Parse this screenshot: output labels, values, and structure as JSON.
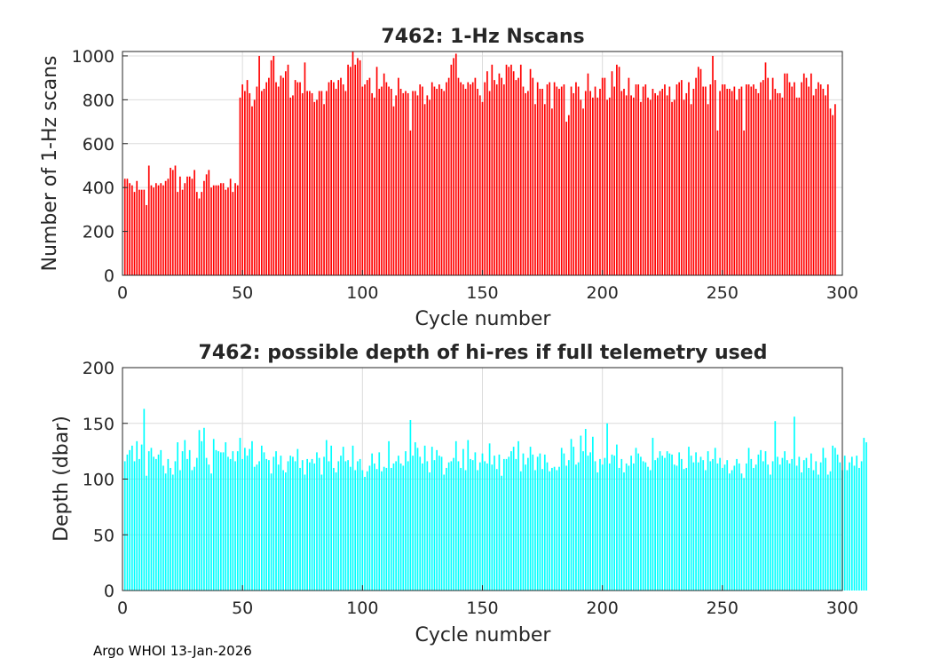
{
  "footer": "Argo WHOI 13-Jan-2026",
  "chart_data": [
    {
      "type": "bar",
      "title": "7462: 1-Hz Nscans",
      "xlabel": "Cycle number",
      "ylabel": "Number of 1-Hz scans",
      "xlim": [
        0,
        300
      ],
      "ylim": [
        0,
        1020
      ],
      "xticks": [
        0,
        50,
        100,
        150,
        200,
        250,
        300
      ],
      "yticks": [
        0,
        200,
        400,
        600,
        800,
        1000
      ],
      "grid": true,
      "color": "#ff0000",
      "x_start": 1,
      "values": [
        440,
        440,
        420,
        410,
        380,
        430,
        390,
        390,
        390,
        320,
        500,
        410,
        400,
        420,
        410,
        420,
        410,
        430,
        440,
        490,
        480,
        500,
        380,
        450,
        390,
        420,
        450,
        450,
        440,
        480,
        380,
        350,
        380,
        430,
        460,
        480,
        400,
        410,
        410,
        410,
        420,
        420,
        390,
        400,
        440,
        380,
        420,
        410,
        810,
        870,
        840,
        890,
        830,
        770,
        800,
        860,
        1000,
        840,
        850,
        880,
        900,
        980,
        1000,
        880,
        860,
        910,
        900,
        930,
        960,
        810,
        820,
        890,
        880,
        880,
        830,
        970,
        840,
        840,
        830,
        790,
        800,
        840,
        840,
        780,
        840,
        880,
        890,
        880,
        850,
        890,
        900,
        870,
        840,
        960,
        950,
        1020,
        960,
        990,
        980,
        860,
        870,
        890,
        900,
        830,
        810,
        950,
        850,
        860,
        920,
        880,
        860,
        850,
        770,
        820,
        900,
        850,
        830,
        840,
        830,
        660,
        840,
        840,
        820,
        870,
        860,
        780,
        820,
        800,
        880,
        860,
        850,
        870,
        850,
        840,
        880,
        900,
        960,
        990,
        1010,
        900,
        880,
        870,
        850,
        880,
        870,
        880,
        900,
        850,
        820,
        790,
        880,
        930,
        840,
        960,
        890,
        870,
        920,
        900,
        870,
        960,
        950,
        960,
        930,
        890,
        900,
        960,
        860,
        830,
        840,
        940,
        900,
        780,
        880,
        850,
        850,
        780,
        870,
        880,
        760,
        880,
        860,
        850,
        860,
        870,
        700,
        730,
        860,
        830,
        880,
        860,
        800,
        760,
        840,
        920,
        840,
        810,
        860,
        810,
        850,
        900,
        900,
        800,
        810,
        930,
        860,
        960,
        950,
        840,
        850,
        820,
        900,
        820,
        810,
        870,
        870,
        790,
        860,
        870,
        810,
        800,
        850,
        830,
        820,
        840,
        850,
        870,
        820,
        860,
        790,
        800,
        870,
        880,
        890,
        800,
        830,
        880,
        780,
        850,
        900,
        950,
        940,
        860,
        860,
        780,
        870,
        1000,
        890,
        660,
        840,
        870,
        870,
        850,
        850,
        840,
        860,
        800,
        850,
        860,
        660,
        870,
        870,
        860,
        870,
        850,
        830,
        880,
        890,
        970,
        900,
        800,
        900,
        850,
        830,
        830,
        810,
        920,
        920,
        880,
        860,
        880,
        810,
        810,
        880,
        920,
        900,
        860,
        920,
        820,
        850,
        880,
        870,
        850,
        820,
        870,
        760,
        730,
        780
      ]
    },
    {
      "type": "bar",
      "title": "7462: possible depth of hi-res if full telemetry used",
      "xlabel": "Cycle number",
      "ylabel": "Depth (dbar)",
      "xlim": [
        0,
        300
      ],
      "ylim": [
        0,
        200
      ],
      "xticks": [
        0,
        50,
        100,
        150,
        200,
        250,
        300
      ],
      "yticks": [
        0,
        50,
        100,
        150,
        200
      ],
      "grid": true,
      "color": "#00ffff",
      "x_start": 1,
      "values": [
        116,
        122,
        126,
        130,
        116,
        134,
        118,
        131,
        163,
        103,
        125,
        128,
        120,
        118,
        122,
        126,
        112,
        105,
        118,
        110,
        104,
        116,
        133,
        108,
        125,
        135,
        118,
        126,
        108,
        111,
        119,
        144,
        134,
        146,
        119,
        113,
        105,
        136,
        126,
        125,
        124,
        124,
        133,
        120,
        118,
        125,
        116,
        125,
        137,
        118,
        128,
        121,
        127,
        134,
        111,
        113,
        116,
        130,
        124,
        118,
        117,
        105,
        120,
        125,
        113,
        121,
        108,
        106,
        116,
        121,
        120,
        116,
        127,
        110,
        117,
        104,
        118,
        115,
        118,
        114,
        124,
        119,
        104,
        120,
        135,
        116,
        130,
        110,
        106,
        116,
        121,
        129,
        116,
        117,
        111,
        130,
        108,
        116,
        118,
        108,
        102,
        107,
        112,
        123,
        114,
        109,
        124,
        107,
        111,
        110,
        134,
        110,
        114,
        116,
        121,
        114,
        112,
        125,
        116,
        153,
        121,
        133,
        128,
        120,
        114,
        130,
        116,
        106,
        129,
        117,
        126,
        121,
        120,
        104,
        110,
        115,
        116,
        119,
        134,
        116,
        110,
        127,
        108,
        135,
        118,
        117,
        124,
        108,
        115,
        123,
        116,
        114,
        132,
        113,
        121,
        109,
        122,
        103,
        118,
        118,
        120,
        125,
        129,
        118,
        134,
        107,
        123,
        113,
        119,
        129,
        122,
        108,
        120,
        123,
        109,
        122,
        115,
        107,
        110,
        111,
        108,
        111,
        128,
        123,
        112,
        117,
        136,
        129,
        113,
        115,
        139,
        125,
        145,
        121,
        124,
        138,
        116,
        106,
        118,
        113,
        119,
        150,
        114,
        122,
        121,
        131,
        110,
        118,
        106,
        114,
        112,
        121,
        114,
        128,
        123,
        120,
        116,
        115,
        111,
        108,
        137,
        117,
        119,
        125,
        121,
        119,
        125,
        123,
        122,
        113,
        112,
        124,
        118,
        109,
        110,
        129,
        121,
        115,
        124,
        115,
        120,
        117,
        108,
        125,
        116,
        118,
        128,
        114,
        119,
        110,
        113,
        117,
        105,
        108,
        112,
        118,
        114,
        105,
        101,
        114,
        128,
        118,
        110,
        113,
        122,
        126,
        116,
        125,
        113,
        104,
        116,
        152,
        120,
        113,
        119,
        125,
        117,
        114,
        118,
        156,
        112,
        120,
        106,
        117,
        119,
        110,
        123,
        108,
        116,
        104,
        115,
        128,
        119,
        104,
        107,
        130,
        128,
        122,
        115,
        108,
        121,
        108,
        115,
        120,
        112,
        121,
        110,
        116,
        137,
        133
      ]
    }
  ]
}
